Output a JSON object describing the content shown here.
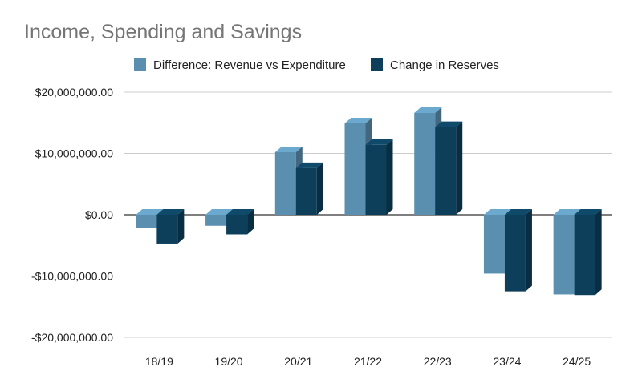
{
  "chart_data": {
    "type": "bar",
    "title": "Income, Spending and Savings",
    "categories": [
      "18/19",
      "19/20",
      "20/21",
      "21/22",
      "22/23",
      "23/24",
      "24/25"
    ],
    "series": [
      {
        "name": "Difference: Revenue vs Expenditure",
        "color": "#5b8faf",
        "values": [
          -2200000,
          -1800000,
          10200000,
          14900000,
          16600000,
          -9600000,
          -13000000
        ]
      },
      {
        "name": "Change in Reserves",
        "color": "#0d3f5b",
        "values": [
          -4700000,
          -3200000,
          7600000,
          11400000,
          14300000,
          -12500000,
          -13100000
        ]
      }
    ],
    "ylim": [
      -20000000,
      20000000
    ],
    "yticks": [
      20000000,
      10000000,
      0,
      -10000000,
      -20000000
    ],
    "ytick_labels": [
      "$20,000,000.00",
      "$10,000,000.00",
      "$0.00",
      "-$10,000,000.00",
      "-$20,000,000.00"
    ],
    "grid": true,
    "legend_position": "top",
    "style": "3d-column"
  }
}
